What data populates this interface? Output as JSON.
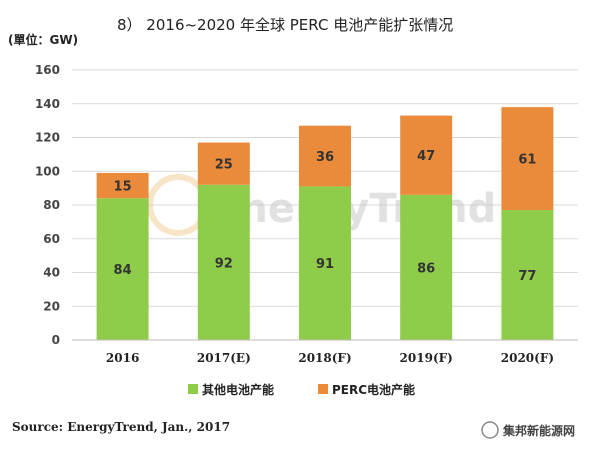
{
  "chart_data": {
    "type": "bar",
    "stacked": true,
    "title": "8） 2016~2020 年全球 PERC 电池产能扩张情况",
    "unit_label": "(單位：GW)",
    "categories": [
      "2016",
      "2017(E)",
      "2018(F)",
      "2019(F)",
      "2020(F)"
    ],
    "series": [
      {
        "name": "其他电池产能",
        "color": "#8fcc4a",
        "values": [
          84,
          92,
          91,
          86,
          77
        ]
      },
      {
        "name": "PERC电池产能",
        "color": "#ea8b3b",
        "values": [
          15,
          25,
          36,
          47,
          61
        ]
      }
    ],
    "ylim": [
      0,
      160
    ],
    "yticks": [
      "0",
      "20",
      "40",
      "60",
      "80",
      "100",
      "120",
      "140",
      "160"
    ],
    "grid": true,
    "legend_position": "bottom",
    "source": "Source: EnergyTrend, Jan., 2017",
    "watermark": "EnergyTrend",
    "credit": "集邦新能源网"
  }
}
